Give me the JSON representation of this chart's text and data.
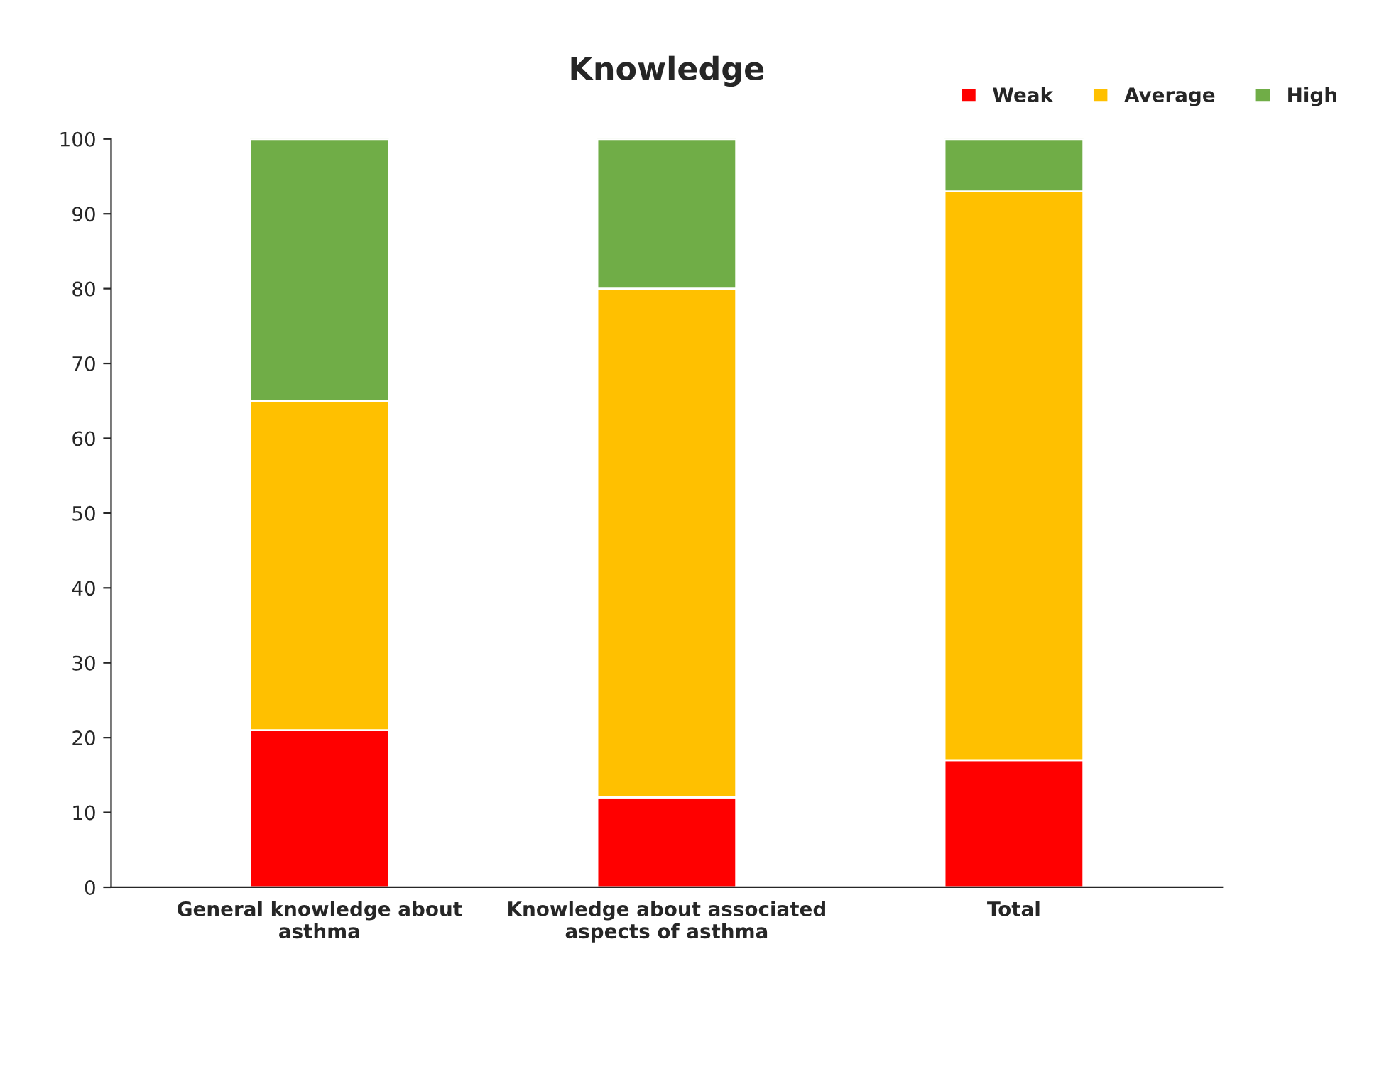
{
  "chart_data": {
    "type": "bar",
    "title": "Knowledge",
    "stacked": true,
    "categories": [
      "General knowledge about\nasthma",
      "Knowledge about associated\naspects of asthma",
      "Total"
    ],
    "series": [
      {
        "name": "Weak",
        "color": "#ff0000",
        "values": [
          21,
          12,
          17
        ]
      },
      {
        "name": "Average",
        "color": "#ffc000",
        "values": [
          44,
          68,
          76
        ]
      },
      {
        "name": "High",
        "color": "#70ad47",
        "values": [
          35,
          20,
          7
        ]
      }
    ],
    "ylim": [
      0,
      100
    ],
    "yticks": [
      0,
      10,
      20,
      30,
      40,
      50,
      60,
      70,
      80,
      90,
      100
    ],
    "grid": false,
    "legend": "top right"
  }
}
